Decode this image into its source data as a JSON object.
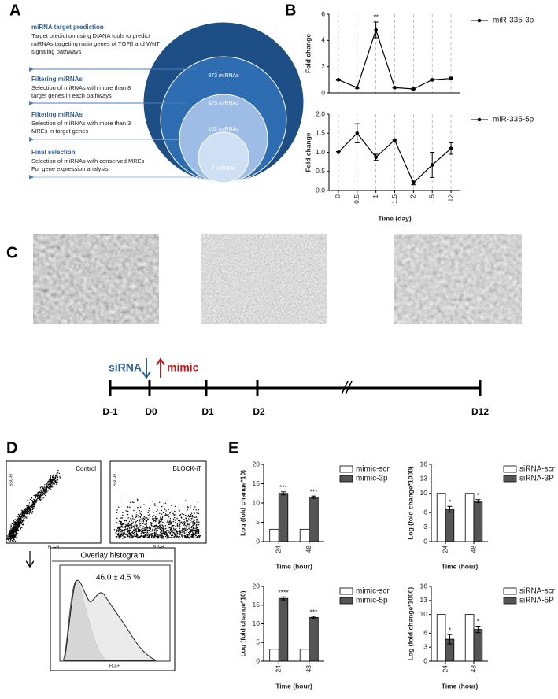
{
  "panel_labels": [
    "A",
    "B",
    "C",
    "D",
    "E"
  ],
  "panel_a": {
    "steps": [
      {
        "title": "miRNA target prediction",
        "text": [
          "Target prediction using  DIANA tools to predict",
          "miRNAs targeting main genes of TGFβ and WNT",
          "signaling pathways"
        ]
      },
      {
        "title": "Filtering miRNAs",
        "text": [
          "Selection of miRNAs with more than 8",
          "target genes in each pathways"
        ]
      },
      {
        "title": "Filtering miRNAs",
        "text": [
          "Selection of miRNAs with more than 3",
          "MREs in target genes"
        ]
      },
      {
        "title": "Final selection",
        "text": [
          "Selection of miRNAs with conserved MREs",
          "For gene expression analysis"
        ]
      }
    ],
    "circles": [
      "973 miRNAs",
      "523 miRNAs",
      "102 miRNAs",
      "7 miRNAs"
    ]
  },
  "panel_c": {
    "treatments": [
      "siRNA",
      "mimic"
    ],
    "timepoints": [
      "D-1",
      "D0",
      "D1",
      "D2",
      "D12"
    ]
  },
  "panel_d": {
    "plots": [
      {
        "title": "Control",
        "y_label": "SSC-H",
        "x_label": "FL3-H"
      },
      {
        "title": "BLOCK-iT",
        "y_label": "SSC-H",
        "x_label": "FL3-H"
      }
    ],
    "histogram": {
      "title": "Overlay histogram",
      "result": "46.0 ± 4.5 %",
      "x_label": "FL3-H"
    }
  },
  "chart_data": [
    {
      "type": "line",
      "y_label": "Fold change",
      "grid": "x",
      "series": [
        {
          "name": "miR-335-3p",
          "color": "#000000",
          "values": [
            1.0,
            0.4,
            4.8,
            0.4,
            0.3,
            1.0,
            1.1
          ],
          "errors": [
            0.05,
            0.05,
            0.6,
            0.03,
            0.05,
            0.05,
            0.1
          ],
          "annotations": [
            null,
            null,
            "**",
            null,
            null,
            null,
            null
          ]
        }
      ],
      "ylim": [
        0,
        6
      ],
      "yticks": [
        0,
        2,
        4,
        6
      ]
    },
    {
      "type": "line",
      "y_label": "Fold change",
      "x_label": "Time (day)",
      "grid": "x",
      "categories": [
        "0",
        "0.5",
        "1",
        "1.5",
        "2",
        "5",
        "12"
      ],
      "series": [
        {
          "name": "miR-335-5p",
          "color": "#000000",
          "values": [
            1.0,
            1.5,
            0.87,
            1.32,
            0.2,
            0.67,
            1.1
          ],
          "errors": [
            0.02,
            0.25,
            0.08,
            0.02,
            0.05,
            0.33,
            0.15
          ]
        }
      ],
      "ylim": [
        0,
        2
      ],
      "yticks": [
        {
          "value": 0,
          "label": "0.0"
        },
        0.5,
        {
          "value": 1,
          "label": "1.0"
        },
        1.5,
        {
          "value": 2,
          "label": "2.0"
        }
      ]
    },
    {
      "type": "bar",
      "y_label": "Log (fold change*10)",
      "x_label": "Time (hour)",
      "categories": [
        "24",
        "48"
      ],
      "series": [
        {
          "name": "mimic-scr",
          "color": "#ffffff",
          "values": [
            3.2,
            3.2
          ]
        },
        {
          "name": "mimic-3p",
          "color": "#555555",
          "values": [
            12.5,
            11.5
          ],
          "errors": [
            0.4,
            0.3
          ],
          "annotations": [
            "***",
            "***"
          ]
        }
      ],
      "ylim": [
        0,
        20
      ],
      "yticks": [
        0,
        5,
        10,
        15,
        20
      ]
    },
    {
      "type": "bar",
      "y_label": "Log (fold change*1000)",
      "x_label": "Time (hour)",
      "categories": [
        "24",
        "48"
      ],
      "series": [
        {
          "name": "siRNA-scr",
          "color": "#ffffff",
          "values": [
            10,
            10
          ]
        },
        {
          "name": "siRNA-3P",
          "color": "#555555",
          "values": [
            6.7,
            8.4
          ],
          "errors": [
            0.6,
            0.3
          ],
          "annotations": [
            "*",
            "*"
          ]
        }
      ],
      "ylim": [
        0,
        16
      ],
      "yticks": [
        0,
        3,
        6,
        10,
        13,
        16
      ]
    },
    {
      "type": "bar",
      "y_label": "Log (fold change*10)",
      "x_label": "Time (hour)",
      "categories": [
        "24",
        "48"
      ],
      "series": [
        {
          "name": "mimic-scr",
          "color": "#ffffff",
          "values": [
            3.2,
            3.2
          ]
        },
        {
          "name": "mimic-5p",
          "color": "#555555",
          "values": [
            16.8,
            11.7
          ],
          "errors": [
            0.4,
            0.3
          ],
          "annotations": [
            "****",
            "***"
          ]
        }
      ],
      "ylim": [
        0,
        20
      ],
      "yticks": [
        0,
        5,
        10,
        15,
        20
      ]
    },
    {
      "type": "bar",
      "y_label": "Log (fold change*1000)",
      "x_label": "Time (hour)",
      "categories": [
        "24",
        "48"
      ],
      "series": [
        {
          "name": "siRNA-scr",
          "color": "#ffffff",
          "values": [
            10,
            10
          ]
        },
        {
          "name": "siRNA-5P",
          "color": "#555555",
          "values": [
            4.7,
            6.8
          ],
          "errors": [
            1.0,
            0.7
          ],
          "annotations": [
            "*",
            "*"
          ]
        }
      ],
      "ylim": [
        0,
        16
      ],
      "yticks": [
        0,
        3,
        6,
        10,
        13,
        16
      ]
    }
  ]
}
